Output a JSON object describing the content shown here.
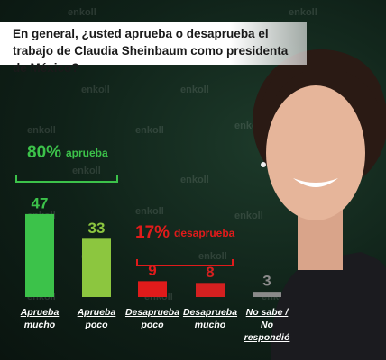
{
  "chart_data": {
    "type": "bar",
    "title": "En general, ¿usted aprueba o desaprueba el trabajo de Claudia Sheinbaum como presidenta de México?",
    "categories": [
      "Aprueba mucho",
      "Aprueba poco",
      "Desaprueba poco",
      "Desaprueba mucho",
      "No sabe / No respondió"
    ],
    "values": [
      47,
      33,
      9,
      8,
      3
    ],
    "colors": [
      "#3cc24a",
      "#8cc63f",
      "#e01b1b",
      "#d42020",
      "#8a8a8a"
    ]
  },
  "annotations": [
    {
      "percent": "80%",
      "text": "aprueba"
    },
    {
      "percent": "17%",
      "text": "desaprueba"
    }
  ],
  "watermark": "enkoll"
}
